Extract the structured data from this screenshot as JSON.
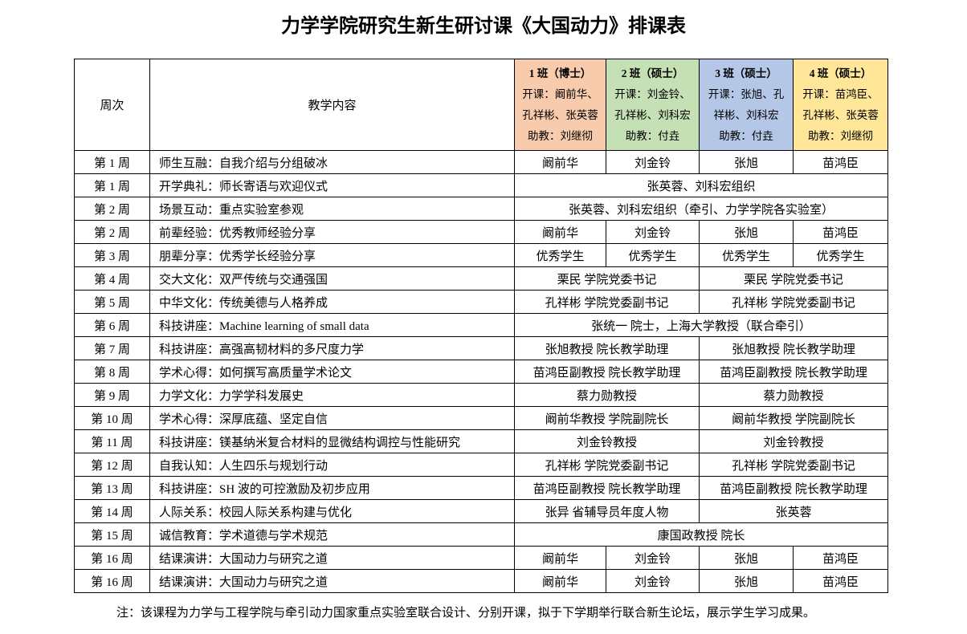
{
  "title": "力学学院研究生新生研讨课《大国动力》排课表",
  "headers": {
    "week": "周次",
    "content": "教学内容"
  },
  "classes": [
    {
      "name": "1 班（博士）",
      "line1": "开课：阚前华、",
      "line2": "孔祥彬、张英蓉",
      "assistant": "助教：刘继彻",
      "color": "#f8cbad"
    },
    {
      "name": "2 班（硕士）",
      "line1": "开课：刘金铃、",
      "line2": "孔祥彬、刘科宏",
      "assistant": "助教：付垚",
      "color": "#c5e0b4"
    },
    {
      "name": "3 班（硕士）",
      "line1": "开课：张旭、孔",
      "line2": "祥彬、刘科宏",
      "assistant": "助教：付垚",
      "color": "#b4c7e7"
    },
    {
      "name": "4 班（硕士）",
      "line1": "开课：苗鸿臣、",
      "line2": "孔祥彬、张英蓉",
      "assistant": "助教：刘继彻",
      "color": "#ffe699"
    }
  ],
  "rows": [
    {
      "week": "第 1 周",
      "content": "师生互融：自我介绍与分组破冰",
      "cells": [
        {
          "text": "阚前华",
          "span": 1
        },
        {
          "text": "刘金铃",
          "span": 1
        },
        {
          "text": "张旭",
          "span": 1
        },
        {
          "text": "苗鸿臣",
          "span": 1
        }
      ]
    },
    {
      "week": "第 1 周",
      "content": "开学典礼：师长寄语与欢迎仪式",
      "cells": [
        {
          "text": "张英蓉、刘科宏组织",
          "span": 4
        }
      ]
    },
    {
      "week": "第 2 周",
      "content": "场景互动：重点实验室参观",
      "cells": [
        {
          "text": "张英蓉、刘科宏组织（牵引、力学学院各实验室）",
          "span": 4
        }
      ]
    },
    {
      "week": "第 2 周",
      "content": "前辈经验：优秀教师经验分享",
      "cells": [
        {
          "text": "阚前华",
          "span": 1
        },
        {
          "text": "刘金铃",
          "span": 1
        },
        {
          "text": "张旭",
          "span": 1
        },
        {
          "text": "苗鸿臣",
          "span": 1
        }
      ]
    },
    {
      "week": "第 3 周",
      "content": "朋辈分享：优秀学长经验分享",
      "cells": [
        {
          "text": "优秀学生",
          "span": 1
        },
        {
          "text": "优秀学生",
          "span": 1
        },
        {
          "text": "优秀学生",
          "span": 1
        },
        {
          "text": "优秀学生",
          "span": 1
        }
      ]
    },
    {
      "week": "第 4 周",
      "content": "交大文化：双严传统与交通强国",
      "cells": [
        {
          "text": "栗民  学院党委书记",
          "span": 2
        },
        {
          "text": "栗民  学院党委书记",
          "span": 2
        }
      ]
    },
    {
      "week": "第 5 周",
      "content": "中华文化：传统美德与人格养成",
      "cells": [
        {
          "text": "孔祥彬  学院党委副书记",
          "span": 2
        },
        {
          "text": "孔祥彬  学院党委副书记",
          "span": 2
        }
      ]
    },
    {
      "week": "第 6 周",
      "content": "科技讲座：Machine learning of small data",
      "cells": [
        {
          "text": "张统一  院士，上海大学教授（联合牵引）",
          "span": 4
        }
      ]
    },
    {
      "week": "第 7 周",
      "content": "科技讲座：高强高韧材料的多尺度力学",
      "cells": [
        {
          "text": "张旭教授  院长教学助理",
          "span": 2
        },
        {
          "text": "张旭教授  院长教学助理",
          "span": 2
        }
      ]
    },
    {
      "week": "第 8 周",
      "content": "学术心得：如何撰写高质量学术论文",
      "cells": [
        {
          "text": "苗鸿臣副教授  院长教学助理",
          "span": 2
        },
        {
          "text": "苗鸿臣副教授  院长教学助理",
          "span": 2
        }
      ]
    },
    {
      "week": "第 9 周",
      "content": "力学文化：力学学科发展史",
      "cells": [
        {
          "text": "蔡力勋教授",
          "span": 2
        },
        {
          "text": "蔡力勋教授",
          "span": 2
        }
      ]
    },
    {
      "week": "第 10 周",
      "content": "学术心得：深厚底蕴、坚定自信",
      "cells": [
        {
          "text": "阚前华教授  学院副院长",
          "span": 2
        },
        {
          "text": "阚前华教授  学院副院长",
          "span": 2
        }
      ]
    },
    {
      "week": "第 11 周",
      "content": "科技讲座：镁基纳米复合材料的显微结构调控与性能研究",
      "cells": [
        {
          "text": "刘金铃教授",
          "span": 2
        },
        {
          "text": "刘金铃教授",
          "span": 2
        }
      ]
    },
    {
      "week": "第 12 周",
      "content": "自我认知：人生四乐与规划行动",
      "cells": [
        {
          "text": "孔祥彬  学院党委副书记",
          "span": 2
        },
        {
          "text": "孔祥彬  学院党委副书记",
          "span": 2
        }
      ]
    },
    {
      "week": "第 13 周",
      "content": "科技讲座：SH 波的可控激励及初步应用",
      "cells": [
        {
          "text": "苗鸿臣副教授  院长教学助理",
          "span": 2
        },
        {
          "text": "苗鸿臣副教授  院长教学助理",
          "span": 2
        }
      ]
    },
    {
      "week": "第 14 周",
      "content": "人际关系：校园人际关系构建与优化",
      "cells": [
        {
          "text": "张异  省辅导员年度人物",
          "span": 2
        },
        {
          "text": "张英蓉",
          "span": 2
        }
      ]
    },
    {
      "week": "第 15 周",
      "content": "诚信教育：学术道德与学术规范",
      "cells": [
        {
          "text": "康国政教授  院长",
          "span": 4
        }
      ]
    },
    {
      "week": "第 16 周",
      "content": "结课演讲：大国动力与研究之道",
      "cells": [
        {
          "text": "阚前华",
          "span": 1
        },
        {
          "text": "刘金铃",
          "span": 1
        },
        {
          "text": "张旭",
          "span": 1
        },
        {
          "text": "苗鸿臣",
          "span": 1
        }
      ]
    },
    {
      "week": "第 16 周",
      "content": "结课演讲：大国动力与研究之道",
      "cells": [
        {
          "text": "阚前华",
          "span": 1
        },
        {
          "text": "刘金铃",
          "span": 1
        },
        {
          "text": "张旭",
          "span": 1
        },
        {
          "text": "苗鸿臣",
          "span": 1
        }
      ]
    }
  ],
  "note": "注：该课程为力学与工程学院与牵引动力国家重点实验室联合设计、分别开课，拟于下学期举行联合新生论坛，展示学生学习成果。"
}
